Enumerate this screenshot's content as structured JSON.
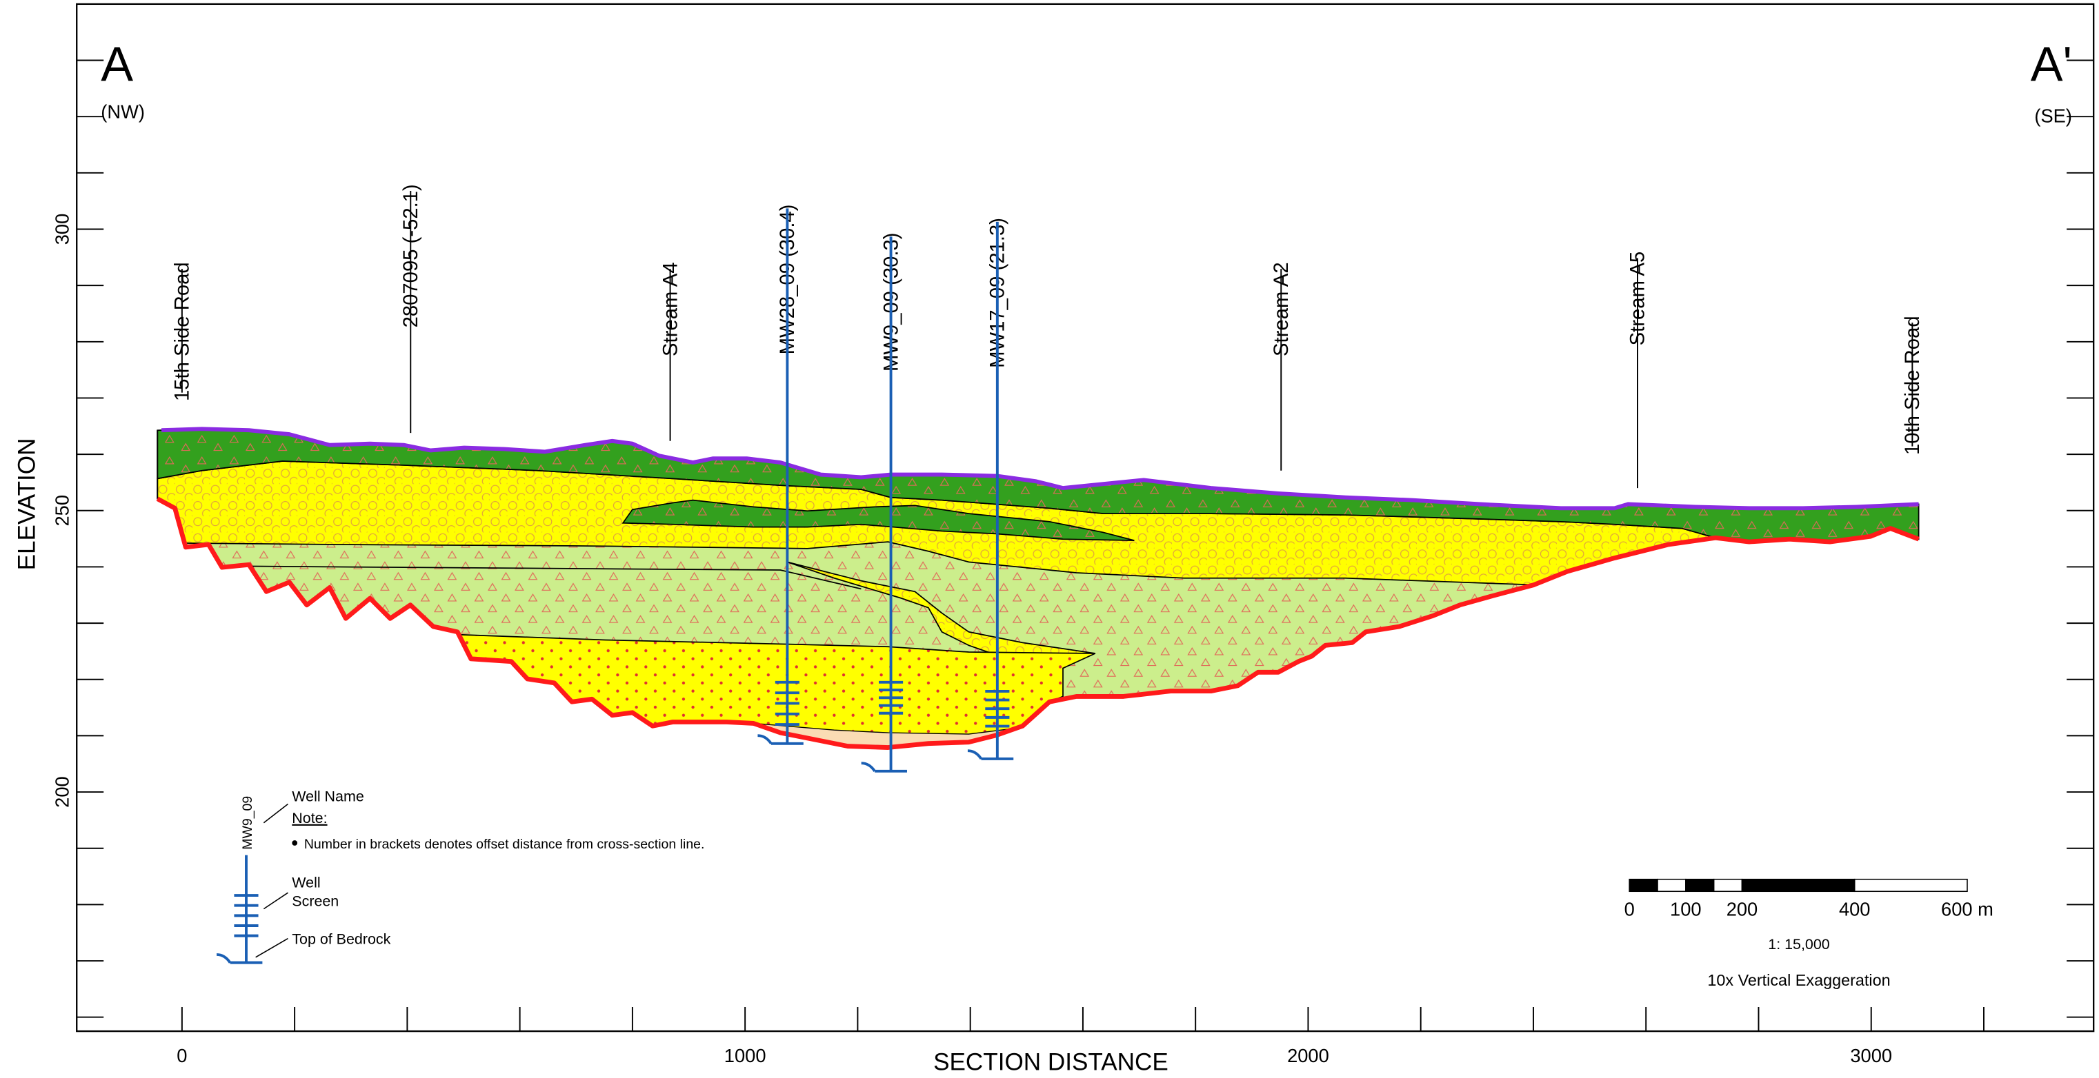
{
  "chart_data": {
    "type": "cross-section",
    "section_start": "A",
    "section_start_direction": "(NW)",
    "section_end": "A'",
    "section_end_direction": "(SE)",
    "x_label": "SECTION DISTANCE",
    "y_label": "ELEVATION",
    "xlim": [
      -187,
      3395
    ],
    "ylim": [
      157.5,
      340
    ],
    "xticks": [
      0,
      1000,
      2000,
      3000
    ],
    "x_minor_ticks": [
      200,
      400,
      600,
      800,
      1200,
      1400,
      1600,
      1800,
      2200,
      2400,
      2600,
      2800,
      3200
    ],
    "yticks": [
      200,
      250,
      300
    ],
    "y_minor_ticks": [
      160,
      170,
      180,
      190,
      210,
      220,
      230,
      240,
      260,
      270,
      280,
      290,
      310,
      320,
      330
    ],
    "features": [
      {
        "label": "15th Side Road",
        "x": 0
      },
      {
        "label": "2807095 (-52.1)",
        "x": 406
      },
      {
        "label": "Stream A4",
        "x": 867
      },
      {
        "label": "Stream A2",
        "x": 1952
      },
      {
        "label": "Stream A5",
        "x": 2585
      },
      {
        "label": "10th Side Road",
        "x": 3073
      }
    ],
    "wells": [
      {
        "label": "MW28_09 (30.4)",
        "x": 1075,
        "screen": [
          219.5,
          212
        ],
        "bedrock": 208.6
      },
      {
        "label": "MW9_09 (30.3)",
        "x": 1259,
        "screen": [
          219.5,
          214
        ],
        "bedrock": 203.7
      },
      {
        "label": "MW17_09 (21.3)",
        "x": 1448,
        "screen": [
          217.9,
          211.7
        ],
        "bedrock": 205.9
      }
    ],
    "legend": {
      "well_name": "Well Name",
      "note_title": "Note:",
      "note": "Number in brackets denotes offset distance from cross-section line.",
      "example_well": "MW9_09",
      "screen_label": [
        "Well",
        "Screen"
      ],
      "bedrock_label": "Top of Bedrock"
    },
    "scale_bar": {
      "ticks": [
        0,
        100,
        200,
        400,
        {
          "value": 600,
          "label": "600 m"
        }
      ],
      "divisions": [
        0,
        50,
        100,
        150,
        200,
        400,
        600
      ],
      "scale": "1: 15,000",
      "exaggeration": "10x Vertical Exaggeration"
    }
  }
}
